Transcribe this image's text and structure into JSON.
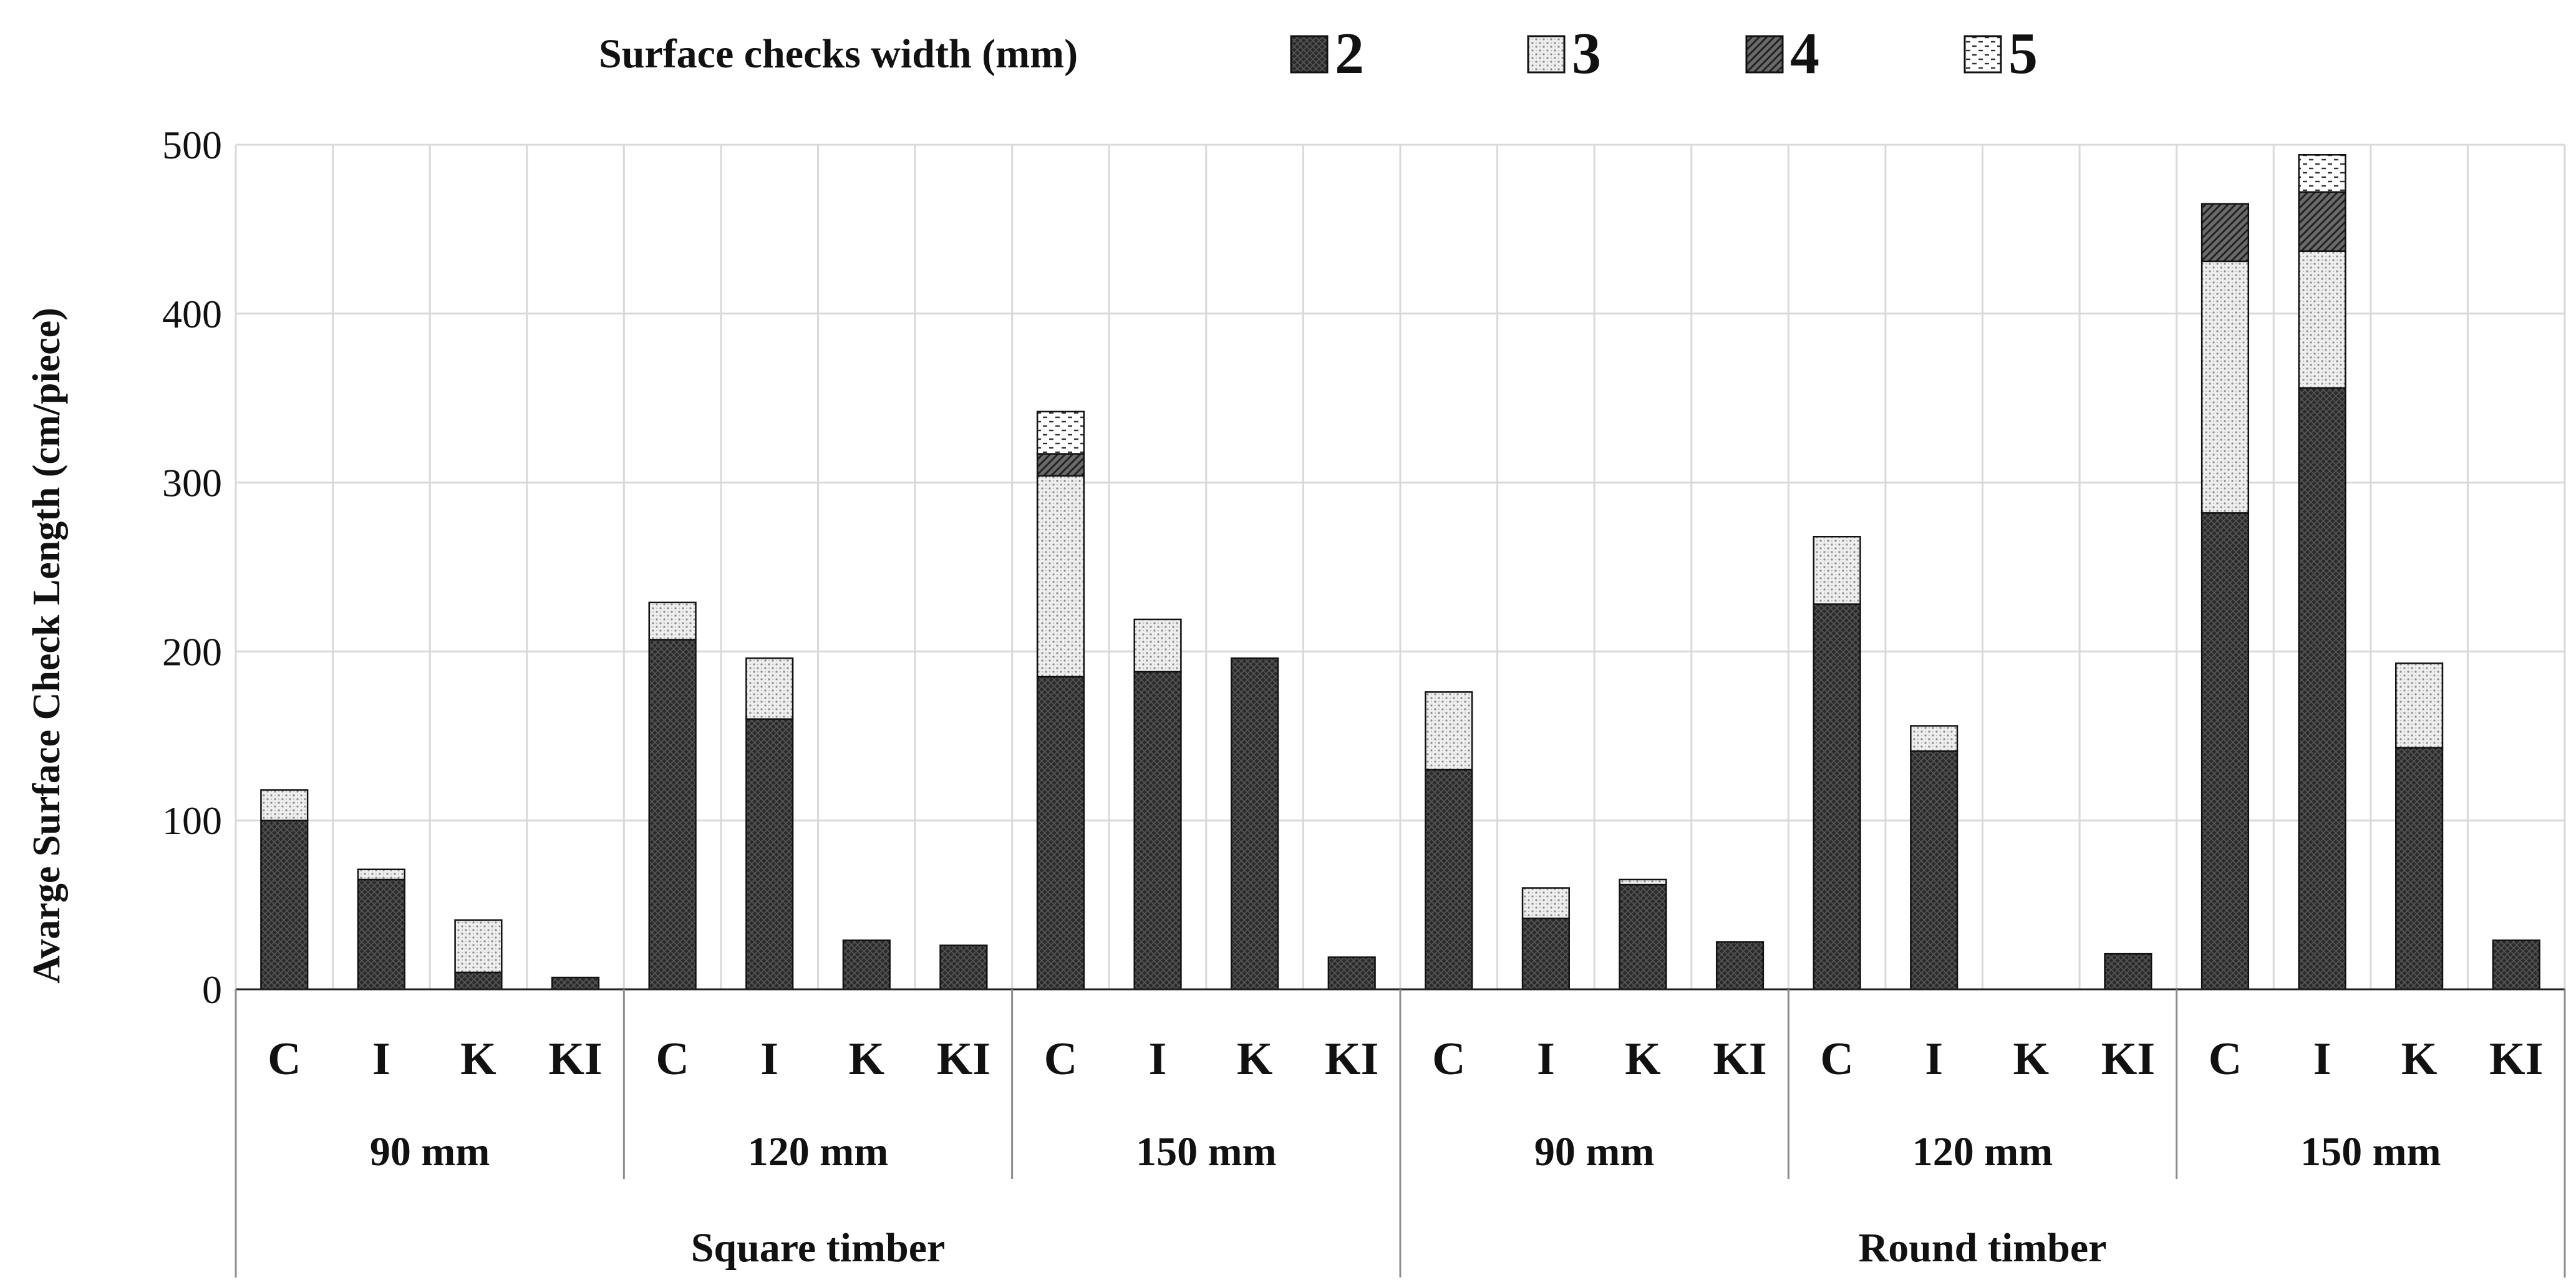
{
  "chart_data": {
    "type": "bar",
    "stacked": true,
    "legend_title": "Surface checks width (mm)",
    "legend_position": "top",
    "ylabel": "Avarge Surface Check Length (cm/piece)",
    "ylim": [
      0,
      500
    ],
    "yticks": [
      "0",
      "100",
      "200",
      "300",
      "400",
      "500"
    ],
    "grid": true,
    "supergroups": [
      {
        "label": "Square timber",
        "groups": [
          {
            "label": "90 mm",
            "categories": [
              "C",
              "I",
              "K",
              "KI"
            ]
          },
          {
            "label": "120 mm",
            "categories": [
              "C",
              "I",
              "K",
              "KI"
            ]
          },
          {
            "label": "150 mm",
            "categories": [
              "C",
              "I",
              "K",
              "KI"
            ]
          }
        ]
      },
      {
        "label": "Round timber",
        "groups": [
          {
            "label": "90 mm",
            "categories": [
              "C",
              "I",
              "K",
              "KI"
            ]
          },
          {
            "label": "120 mm",
            "categories": [
              "C",
              "I",
              "K",
              "KI"
            ]
          },
          {
            "label": "150 mm",
            "categories": [
              "C",
              "I",
              "K",
              "KI"
            ]
          }
        ]
      }
    ],
    "series": [
      {
        "name": "2",
        "pattern": "dark-crosshatch",
        "values": [
          100,
          65,
          10,
          7,
          207,
          160,
          29,
          26,
          185,
          188,
          196,
          19,
          130,
          42,
          62,
          28,
          228,
          141,
          0,
          21,
          282,
          356,
          143,
          29
        ]
      },
      {
        "name": "3",
        "pattern": "light-dots",
        "values": [
          18,
          6,
          31,
          0,
          22,
          36,
          0,
          0,
          119,
          31,
          0,
          0,
          46,
          18,
          3,
          0,
          40,
          15,
          0,
          0,
          149,
          81,
          50,
          0
        ]
      },
      {
        "name": "4",
        "pattern": "diagonal-hatch",
        "values": [
          0,
          0,
          0,
          0,
          0,
          0,
          0,
          0,
          13,
          0,
          0,
          0,
          0,
          0,
          0,
          0,
          0,
          0,
          0,
          0,
          34,
          35,
          0,
          0
        ]
      },
      {
        "name": "5",
        "pattern": "dashes",
        "values": [
          0,
          0,
          0,
          0,
          0,
          0,
          0,
          0,
          25,
          0,
          0,
          0,
          0,
          0,
          0,
          0,
          0,
          0,
          0,
          0,
          0,
          22,
          0,
          0
        ]
      }
    ]
  }
}
